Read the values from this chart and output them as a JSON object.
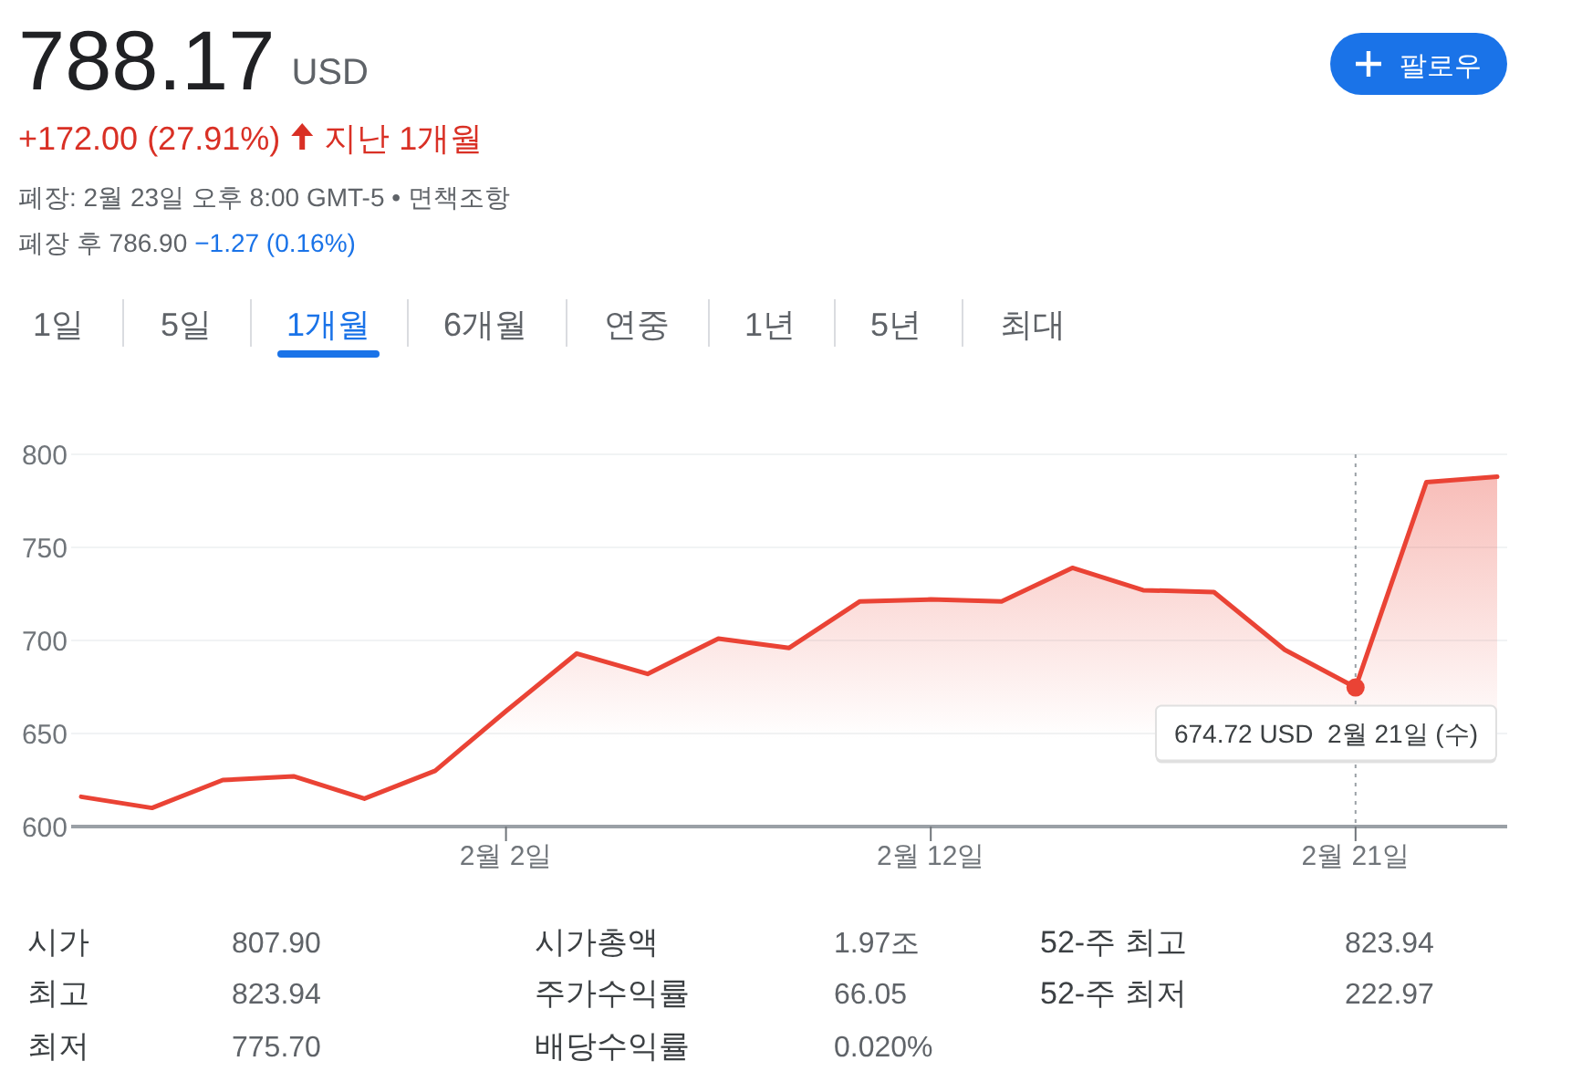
{
  "chart_data": {
    "type": "area",
    "title": "788.17",
    "categories": [
      null,
      null,
      null,
      null,
      null,
      null,
      "2월 2일",
      null,
      null,
      null,
      null,
      null,
      "2월 12일",
      null,
      null,
      null,
      null,
      null,
      "2월 21일",
      null,
      null
    ],
    "values": [
      616,
      610,
      625,
      627,
      615,
      630,
      662,
      693,
      682,
      701,
      696,
      721,
      722,
      721,
      739,
      727,
      726,
      695,
      674.72,
      785,
      788
    ],
    "color": "#ea4335",
    "ylim": [
      600,
      800
    ],
    "yticks": [
      600,
      650,
      700,
      750,
      800
    ],
    "grid": "y",
    "annotations": [
      "USD",
      "+172.00 (27.91%)",
      "지난 1개월",
      "폐장: 2월 23일 오후 8:00 GMT-5 • 면책조항",
      "폐장 후 786.90",
      "−1.27 (0.16%)",
      "팔로우",
      "1일",
      "5일",
      "1개월",
      "6개월",
      "연중",
      "1년",
      "5년",
      "최대",
      "시가",
      "807.90",
      "최고",
      "823.94",
      "최저",
      "775.70",
      "시가총액",
      "1.97조",
      "주가수익률",
      "66.05",
      "배당수익률",
      "0.020%",
      "52-주 최고",
      "823.94",
      "52-주 최저",
      "222.97",
      {
        "text": "674.72 USD  2월 21일 (수)",
        "x": "2월 21일",
        "y": 674.72
      }
    ]
  }
}
